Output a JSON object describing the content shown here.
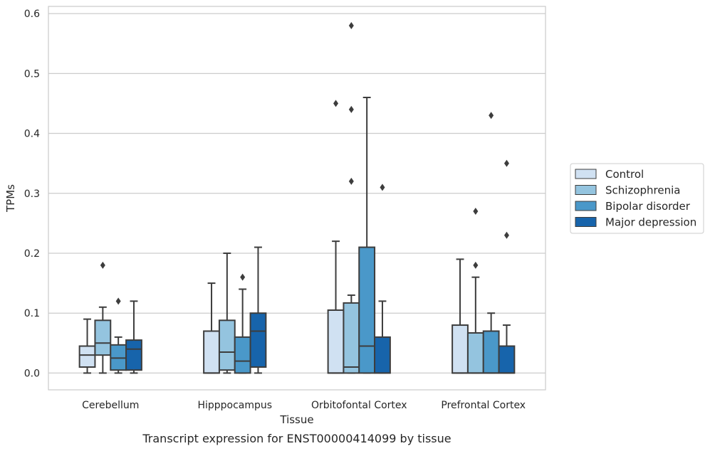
{
  "chart_data": {
    "type": "boxplot",
    "caption": "Transcript expression for ENST00000414099 by tissue",
    "xlabel": "Tissue",
    "ylabel": "TPMs",
    "ylim": [
      -0.028,
      0.612
    ],
    "yticks": [
      0.0,
      0.1,
      0.2,
      0.3,
      0.4,
      0.5,
      0.6
    ],
    "ytick_labels": [
      "0.0",
      "0.1",
      "0.2",
      "0.3",
      "0.4",
      "0.5",
      "0.6"
    ],
    "grid": "horizontal",
    "legend_position": "right",
    "categories": [
      "Cerebellum",
      "Hipppocampus",
      "Orbitofontal Cortex",
      "Prefrontal Cortex"
    ],
    "series": [
      {
        "name": "Control",
        "color": "#d0e1f2",
        "boxes": [
          {
            "whislo": 0.0,
            "q1": 0.01,
            "med": 0.03,
            "q3": 0.045,
            "whishi": 0.09,
            "fliers": []
          },
          {
            "whislo": 0.0,
            "q1": 0.0,
            "med": 0.0,
            "q3": 0.07,
            "whishi": 0.15,
            "fliers": []
          },
          {
            "whislo": 0.0,
            "q1": 0.0,
            "med": 0.0,
            "q3": 0.105,
            "whishi": 0.22,
            "fliers": [
              0.45
            ]
          },
          {
            "whislo": 0.0,
            "q1": 0.0,
            "med": 0.0,
            "q3": 0.08,
            "whishi": 0.19,
            "fliers": []
          }
        ]
      },
      {
        "name": "Schizophrenia",
        "color": "#94c4df",
        "boxes": [
          {
            "whislo": 0.0,
            "q1": 0.03,
            "med": 0.05,
            "q3": 0.088,
            "whishi": 0.11,
            "fliers": [
              0.18
            ]
          },
          {
            "whislo": 0.0,
            "q1": 0.005,
            "med": 0.035,
            "q3": 0.088,
            "whishi": 0.2,
            "fliers": []
          },
          {
            "whislo": 0.0,
            "q1": 0.0,
            "med": 0.01,
            "q3": 0.117,
            "whishi": 0.13,
            "fliers": [
              0.32,
              0.44,
              0.58
            ]
          },
          {
            "whislo": 0.0,
            "q1": 0.0,
            "med": 0.0,
            "q3": 0.067,
            "whishi": 0.16,
            "fliers": [
              0.18,
              0.27
            ]
          }
        ]
      },
      {
        "name": "Bipolar disorder",
        "color": "#4a98c9",
        "boxes": [
          {
            "whislo": 0.0,
            "q1": 0.005,
            "med": 0.025,
            "q3": 0.047,
            "whishi": 0.06,
            "fliers": [
              0.12
            ]
          },
          {
            "whislo": 0.0,
            "q1": 0.0,
            "med": 0.02,
            "q3": 0.06,
            "whishi": 0.14,
            "fliers": [
              0.16
            ]
          },
          {
            "whislo": 0.0,
            "q1": 0.0,
            "med": 0.045,
            "q3": 0.21,
            "whishi": 0.46,
            "fliers": []
          },
          {
            "whislo": 0.0,
            "q1": 0.0,
            "med": 0.0,
            "q3": 0.07,
            "whishi": 0.1,
            "fliers": [
              0.43
            ]
          }
        ]
      },
      {
        "name": "Major depression",
        "color": "#1764ab",
        "boxes": [
          {
            "whislo": 0.0,
            "q1": 0.005,
            "med": 0.04,
            "q3": 0.055,
            "whishi": 0.12,
            "fliers": []
          },
          {
            "whislo": 0.0,
            "q1": 0.01,
            "med": 0.07,
            "q3": 0.1,
            "whishi": 0.21,
            "fliers": []
          },
          {
            "whislo": 0.0,
            "q1": 0.0,
            "med": 0.0,
            "q3": 0.06,
            "whishi": 0.12,
            "fliers": [
              0.31
            ]
          },
          {
            "whislo": 0.0,
            "q1": 0.0,
            "med": 0.0,
            "q3": 0.045,
            "whishi": 0.08,
            "fliers": [
              0.23,
              0.35
            ]
          }
        ]
      }
    ]
  }
}
